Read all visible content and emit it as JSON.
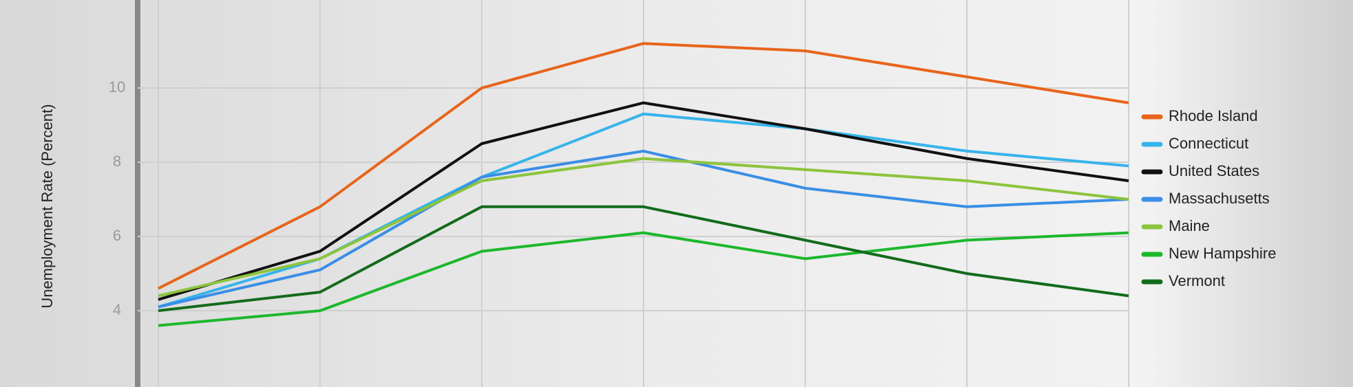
{
  "chart_data": {
    "type": "line",
    "y_label": "Unemployment Rate (Percent)",
    "categories": [
      null,
      null,
      null,
      null,
      null,
      null,
      null
    ],
    "series": [
      {
        "name": "Rhode Island",
        "color": "#e8641b",
        "values": [
          4.6,
          6.8,
          10.0,
          11.2,
          11.0,
          10.3,
          9.6
        ]
      },
      {
        "name": "Connecticut",
        "color": "#36b4ea",
        "values": [
          4.1,
          5.4,
          7.6,
          9.3,
          8.9,
          8.3,
          7.9
        ]
      },
      {
        "name": "United States",
        "color": "#111111",
        "values": [
          4.3,
          5.6,
          8.5,
          9.6,
          8.9,
          8.1,
          7.5
        ]
      },
      {
        "name": "Massachusetts",
        "color": "#3a8ee6",
        "values": [
          4.1,
          5.1,
          7.6,
          8.3,
          7.3,
          6.8,
          7.0
        ]
      },
      {
        "name": "Maine",
        "color": "#8cc43c",
        "values": [
          4.4,
          5.4,
          7.5,
          8.1,
          7.8,
          7.5,
          7.0
        ]
      },
      {
        "name": "New Hampshire",
        "color": "#1cb82c",
        "values": [
          3.6,
          4.0,
          5.6,
          6.1,
          5.4,
          5.9,
          6.1
        ]
      },
      {
        "name": "Vermont",
        "color": "#136b1c",
        "values": [
          4.0,
          4.5,
          6.8,
          6.8,
          5.9,
          5.0,
          4.4
        ]
      }
    ],
    "ylim": [
      2,
      12
    ],
    "yticks": [
      4,
      6,
      8,
      10
    ],
    "grid": true
  }
}
